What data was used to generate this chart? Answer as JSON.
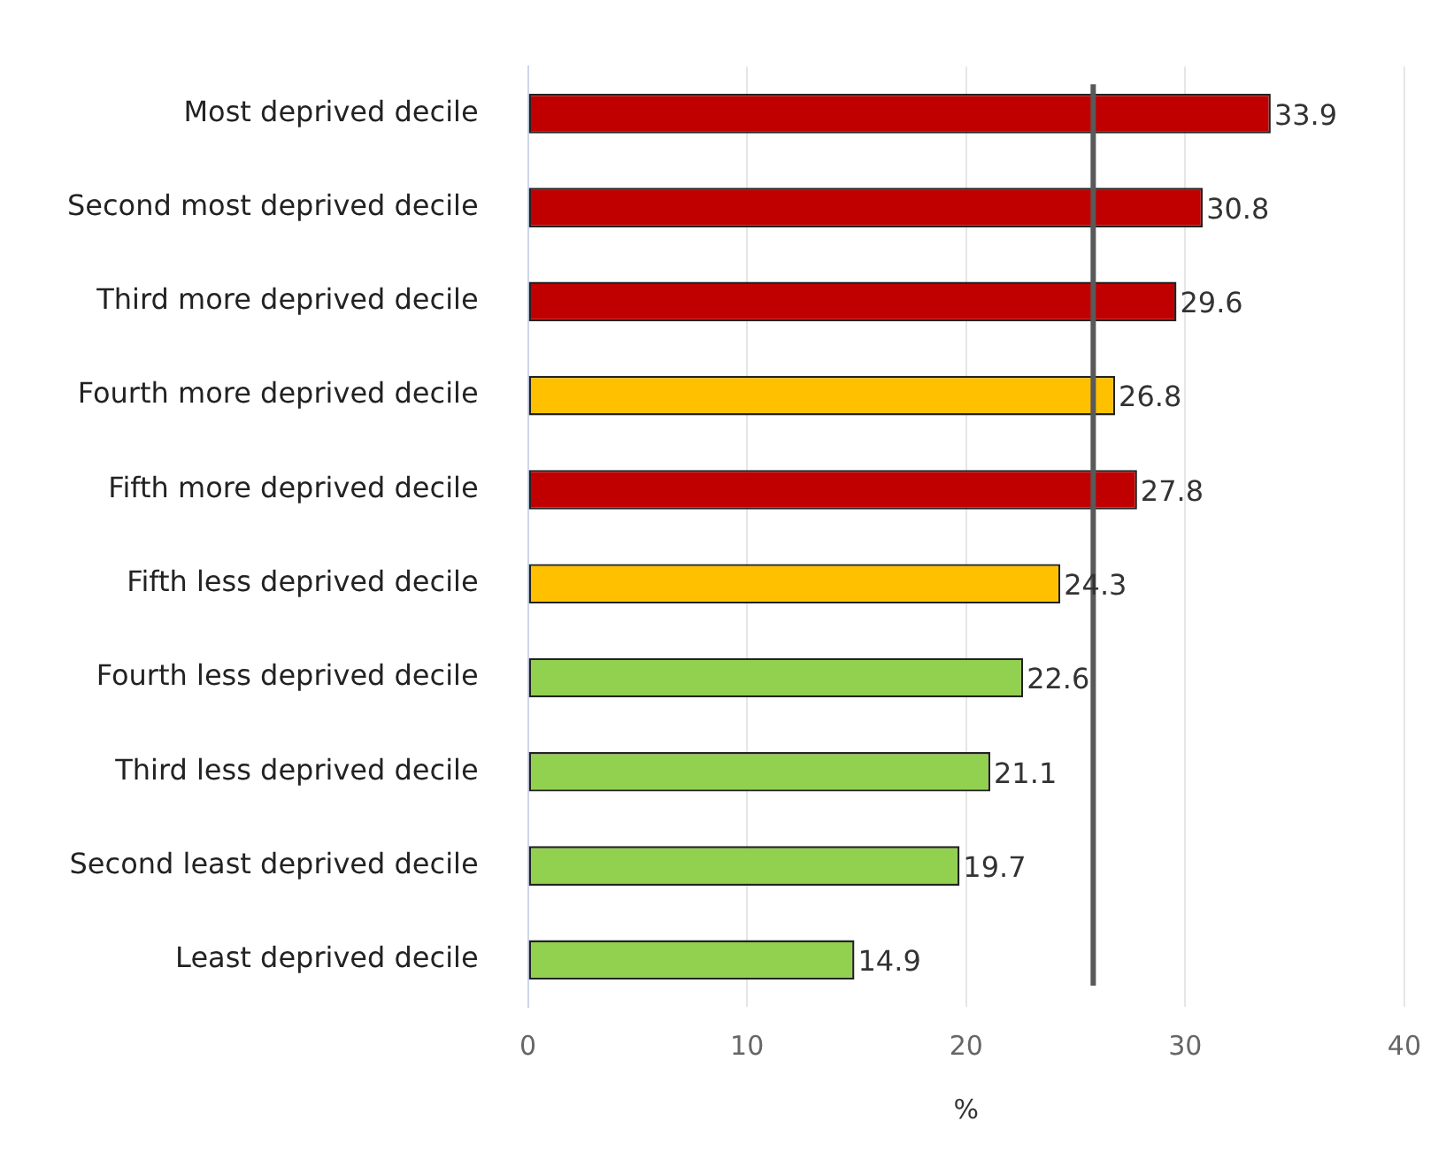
{
  "chart_data": {
    "type": "bar",
    "orientation": "horizontal",
    "xlabel": "%",
    "categories": [
      "Most deprived decile",
      "Second most deprived decile",
      "Third more deprived decile",
      "Fourth more deprived decile",
      "Fifth more deprived decile",
      "Fifth less deprived decile",
      "Fourth less deprived decile",
      "Third less deprived decile",
      "Second least deprived decile",
      "Least deprived decile"
    ],
    "values": [
      33.9,
      30.8,
      29.6,
      26.8,
      27.8,
      24.3,
      22.6,
      21.1,
      19.7,
      14.9
    ],
    "colors": [
      "#c00000",
      "#c00000",
      "#c00000",
      "#ffc000",
      "#c00000",
      "#ffc000",
      "#92d050",
      "#92d050",
      "#92d050",
      "#92d050"
    ],
    "xlim": [
      0,
      40
    ],
    "xticks": [
      0,
      10,
      20,
      30,
      40
    ],
    "grid": "x",
    "data_labels": true,
    "legend": false,
    "ref_lines": [
      {
        "axis": "x",
        "value": 25.8,
        "color": "#595959"
      }
    ]
  }
}
